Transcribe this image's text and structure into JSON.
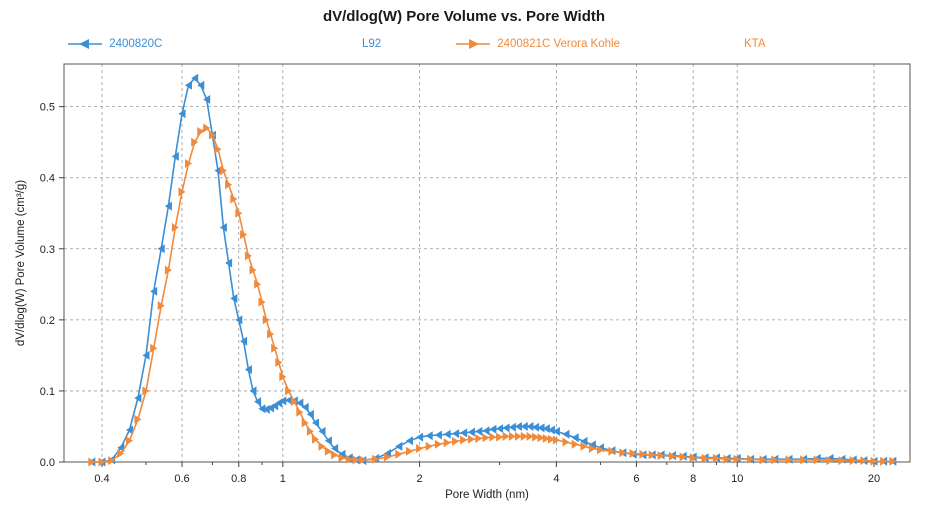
{
  "chart_data": {
    "type": "line",
    "title": "dV/dlog(W) Pore Volume vs. Pore Width",
    "xlabel": "Pore Width (nm)",
    "ylabel": "dV/dlog(W) Pore Volume (cm³/g)",
    "xscale": "log",
    "xlim": [
      0.33,
      24
    ],
    "ylim": [
      0,
      0.56
    ],
    "grid": true,
    "legend_position": "top",
    "x_ticks": [
      {
        "value": 0.4,
        "label": "0.4"
      },
      {
        "value": 0.6,
        "label": "0.6"
      },
      {
        "value": 0.8,
        "label": "0.8"
      },
      {
        "value": 1,
        "label": "1"
      },
      {
        "value": 2,
        "label": "2"
      },
      {
        "value": 4,
        "label": "4"
      },
      {
        "value": 6,
        "label": "6"
      },
      {
        "value": 8,
        "label": "8"
      },
      {
        "value": 10,
        "label": "10"
      },
      {
        "value": 20,
        "label": "20"
      }
    ],
    "x_minor_ticks": [
      0.5,
      0.7,
      0.9,
      3,
      5,
      7,
      9
    ],
    "y_ticks": [
      {
        "value": 0,
        "label": "0.0"
      },
      {
        "value": 0.1,
        "label": "0.1"
      },
      {
        "value": 0.2,
        "label": "0.2"
      },
      {
        "value": 0.3,
        "label": "0.3"
      },
      {
        "value": 0.4,
        "label": "0.4"
      },
      {
        "value": 0.5,
        "label": "0.5"
      }
    ],
    "series": [
      {
        "name": "2400820C",
        "note": "L92",
        "color": "#3a8fd6",
        "marker": "triangle-left",
        "x": [
          0.38,
          0.4,
          0.42,
          0.44,
          0.46,
          0.48,
          0.5,
          0.52,
          0.54,
          0.56,
          0.58,
          0.6,
          0.62,
          0.64,
          0.66,
          0.68,
          0.7,
          0.72,
          0.74,
          0.76,
          0.78,
          0.8,
          0.82,
          0.84,
          0.86,
          0.88,
          0.9,
          0.92,
          0.94,
          0.96,
          0.98,
          1.0,
          1.03,
          1.06,
          1.09,
          1.12,
          1.15,
          1.18,
          1.22,
          1.26,
          1.3,
          1.35,
          1.4,
          1.45,
          1.5,
          1.6,
          1.7,
          1.8,
          1.9,
          2.0,
          2.1,
          2.2,
          2.3,
          2.4,
          2.5,
          2.6,
          2.7,
          2.8,
          2.9,
          3.0,
          3.1,
          3.2,
          3.3,
          3.4,
          3.5,
          3.6,
          3.7,
          3.8,
          3.9,
          4.0,
          4.2,
          4.4,
          4.6,
          4.8,
          5.0,
          5.3,
          5.6,
          5.9,
          6.2,
          6.5,
          6.8,
          7.2,
          7.6,
          8.0,
          8.5,
          9.0,
          9.5,
          10.0,
          10.7,
          11.4,
          12.1,
          13.0,
          14.0,
          15.0,
          16.0,
          17.0,
          18.0,
          19.0,
          20.0,
          21.0,
          22.0
        ],
        "y": [
          0.0,
          0.0,
          0.003,
          0.02,
          0.045,
          0.09,
          0.15,
          0.24,
          0.3,
          0.36,
          0.43,
          0.49,
          0.53,
          0.54,
          0.53,
          0.51,
          0.46,
          0.41,
          0.33,
          0.28,
          0.23,
          0.2,
          0.17,
          0.13,
          0.1,
          0.085,
          0.075,
          0.074,
          0.076,
          0.079,
          0.083,
          0.086,
          0.087,
          0.086,
          0.083,
          0.077,
          0.067,
          0.055,
          0.043,
          0.03,
          0.019,
          0.011,
          0.006,
          0.003,
          0.002,
          0.005,
          0.012,
          0.022,
          0.03,
          0.035,
          0.037,
          0.038,
          0.039,
          0.04,
          0.041,
          0.042,
          0.043,
          0.044,
          0.046,
          0.047,
          0.048,
          0.049,
          0.05,
          0.05,
          0.05,
          0.049,
          0.048,
          0.047,
          0.045,
          0.043,
          0.039,
          0.034,
          0.029,
          0.024,
          0.02,
          0.016,
          0.013,
          0.011,
          0.01,
          0.01,
          0.01,
          0.009,
          0.008,
          0.007,
          0.006,
          0.006,
          0.005,
          0.005,
          0.004,
          0.004,
          0.004,
          0.004,
          0.004,
          0.005,
          0.005,
          0.004,
          0.003,
          0.002,
          0.001,
          0.001,
          0.001
        ]
      },
      {
        "name": "2400821C  Verora Kohle",
        "note": "KTA",
        "color": "#f08a3c",
        "marker": "triangle-right",
        "x": [
          0.38,
          0.4,
          0.42,
          0.44,
          0.46,
          0.48,
          0.5,
          0.52,
          0.54,
          0.56,
          0.58,
          0.6,
          0.62,
          0.64,
          0.66,
          0.68,
          0.7,
          0.72,
          0.74,
          0.76,
          0.78,
          0.8,
          0.82,
          0.84,
          0.86,
          0.88,
          0.9,
          0.92,
          0.94,
          0.96,
          0.98,
          1.0,
          1.03,
          1.06,
          1.09,
          1.12,
          1.15,
          1.18,
          1.22,
          1.26,
          1.3,
          1.35,
          1.4,
          1.45,
          1.5,
          1.6,
          1.7,
          1.8,
          1.9,
          2.0,
          2.1,
          2.2,
          2.3,
          2.4,
          2.5,
          2.6,
          2.7,
          2.8,
          2.9,
          3.0,
          3.1,
          3.2,
          3.3,
          3.4,
          3.5,
          3.6,
          3.7,
          3.8,
          3.9,
          4.0,
          4.2,
          4.4,
          4.6,
          4.8,
          5.0,
          5.3,
          5.6,
          5.9,
          6.2,
          6.5,
          6.8,
          7.2,
          7.6,
          8.0,
          8.5,
          9.0,
          9.5,
          10.0,
          10.7,
          11.4,
          12.1,
          13.0,
          14.0,
          15.0,
          16.0,
          17.0,
          18.0,
          19.0,
          20.0,
          21.0,
          22.0
        ],
        "y": [
          0.0,
          0.0,
          0.002,
          0.012,
          0.03,
          0.06,
          0.1,
          0.16,
          0.22,
          0.27,
          0.33,
          0.38,
          0.42,
          0.45,
          0.465,
          0.47,
          0.46,
          0.44,
          0.41,
          0.39,
          0.37,
          0.35,
          0.32,
          0.29,
          0.27,
          0.25,
          0.225,
          0.2,
          0.18,
          0.16,
          0.14,
          0.12,
          0.1,
          0.085,
          0.07,
          0.055,
          0.043,
          0.032,
          0.022,
          0.015,
          0.01,
          0.006,
          0.004,
          0.003,
          0.003,
          0.004,
          0.007,
          0.011,
          0.015,
          0.019,
          0.022,
          0.025,
          0.027,
          0.029,
          0.031,
          0.032,
          0.033,
          0.034,
          0.035,
          0.035,
          0.036,
          0.036,
          0.036,
          0.036,
          0.036,
          0.035,
          0.034,
          0.033,
          0.032,
          0.031,
          0.028,
          0.025,
          0.022,
          0.019,
          0.017,
          0.015,
          0.013,
          0.012,
          0.011,
          0.01,
          0.009,
          0.008,
          0.007,
          0.006,
          0.005,
          0.005,
          0.004,
          0.004,
          0.004,
          0.003,
          0.003,
          0.003,
          0.003,
          0.003,
          0.002,
          0.002,
          0.002,
          0.002,
          0.001,
          0.001,
          0.001
        ]
      }
    ]
  }
}
